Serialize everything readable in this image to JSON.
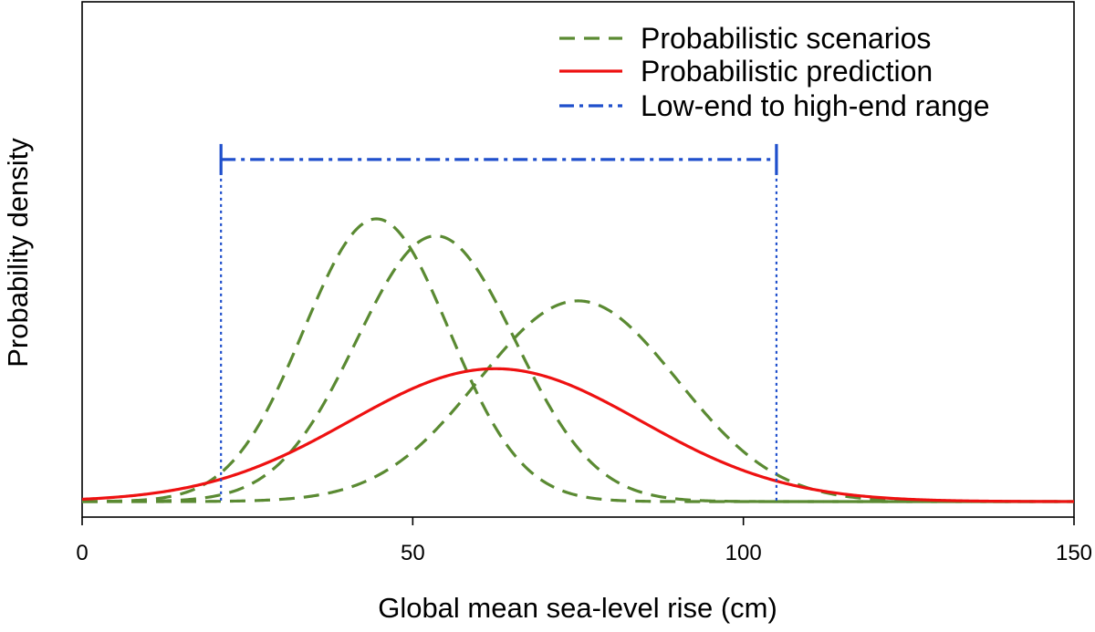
{
  "chart_data": {
    "type": "line",
    "xlabel": "Global mean sea-level rise (cm)",
    "ylabel": "Probability density",
    "xlim": [
      0,
      150
    ],
    "x_ticks": [
      0,
      50,
      100,
      150
    ],
    "x_tick_labels": [
      "0",
      "50",
      "100",
      "150"
    ],
    "y_ticks_shown": false,
    "grid": false,
    "legend_position": "top-right",
    "legend": [
      {
        "label": "Probabilistic scenarios",
        "style": "dashed",
        "color": "#5a8a32"
      },
      {
        "label": "Probabilistic prediction",
        "style": "solid",
        "color": "#ee1111"
      },
      {
        "label": "Low-end to high-end range",
        "style": "dot-dash",
        "color": "#1f4fcc"
      }
    ],
    "density_scale": "relative",
    "series": [
      {
        "kind": "scenario",
        "mean": 44.5,
        "sd": 11,
        "peak": 1.0,
        "color": "#5a8a32"
      },
      {
        "kind": "scenario",
        "mean": 53.5,
        "sd": 12,
        "peak": 0.94,
        "color": "#5a8a32"
      },
      {
        "kind": "scenario",
        "mean": 75,
        "sd": 15,
        "peak": 0.71,
        "color": "#5a8a32"
      },
      {
        "kind": "prediction",
        "mean": 62.5,
        "sd": 22,
        "peak": 0.47,
        "color": "#ee1111"
      }
    ],
    "range": {
      "low": 21,
      "high": 105,
      "level": 1.21,
      "color": "#1f4fcc"
    }
  }
}
